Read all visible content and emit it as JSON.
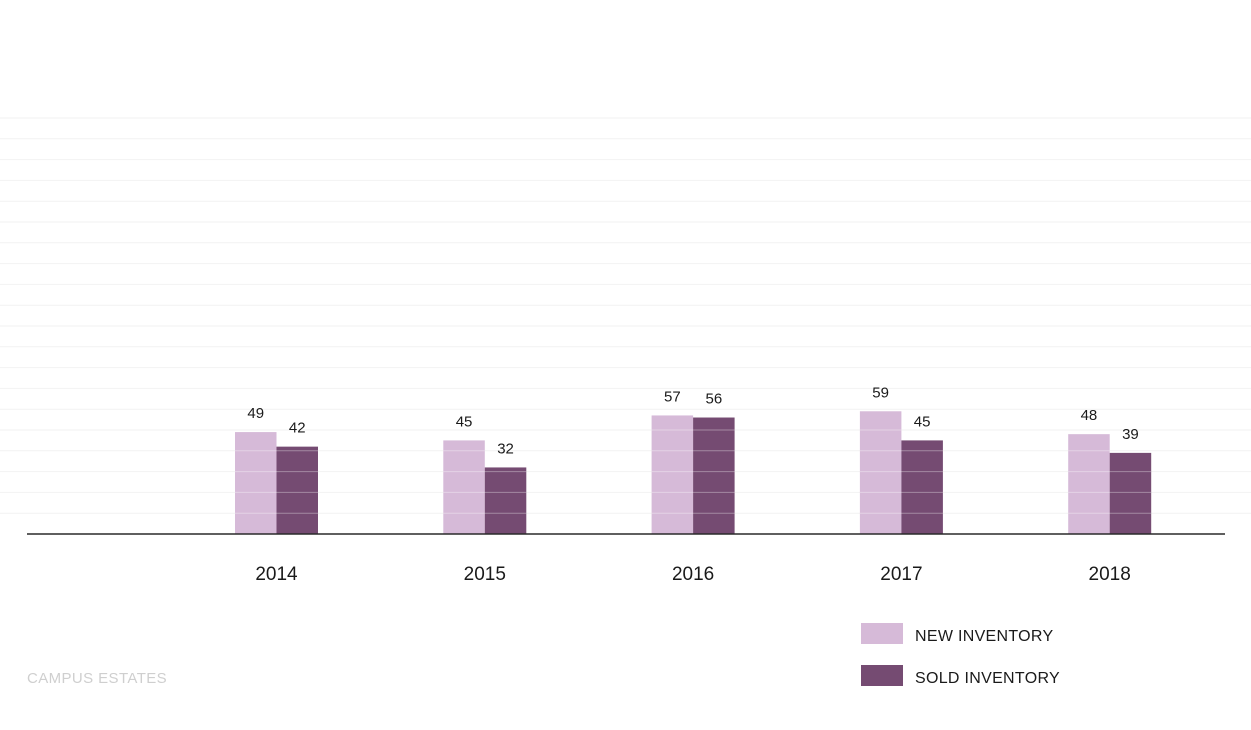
{
  "brand": {
    "label": "CAMPUS ESTATES",
    "color": "#cfcfcf"
  },
  "chart_data": {
    "type": "bar",
    "categories": [
      "2014",
      "2015",
      "2016",
      "2017",
      "2018"
    ],
    "series": [
      {
        "name": "NEW INVENTORY",
        "color": "#d6bad8",
        "values": [
          49,
          45,
          57,
          59,
          48
        ]
      },
      {
        "name": "SOLD INVENTORY",
        "color": "#754b72",
        "values": [
          42,
          32,
          56,
          45,
          39
        ]
      }
    ],
    "title": "",
    "xlabel": "",
    "ylabel": "",
    "ylim": [
      0,
      200
    ],
    "grid": true,
    "legend_position": "bottom-right",
    "data_labels": true
  }
}
